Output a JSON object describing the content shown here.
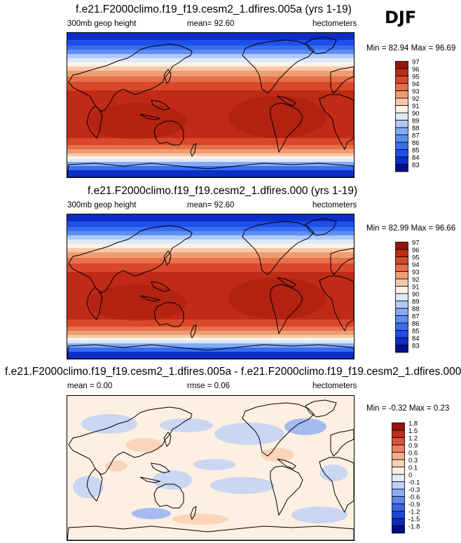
{
  "season": "DJF",
  "chart_data": [
    {
      "type": "heatmap",
      "title": "f.e21.F2000climo.f19_f19.cesm2_1.dfires.005a (yrs 1-19)",
      "variable": "300mb geop height",
      "mean_label": "mean=  92.60",
      "units": "hectometers",
      "minmax_label": "Min = 82.94 Max = 96.69",
      "min": 82.94,
      "max": 96.69,
      "mean": 92.6,
      "colorbar_levels": [
        "83",
        "84",
        "85",
        "86",
        "87",
        "88",
        "89",
        "90",
        "91",
        "92",
        "93",
        "94",
        "95",
        "96",
        "97"
      ],
      "colorbar_colors": [
        "#000f8a",
        "#0a2fc8",
        "#1f4fe8",
        "#3a6ef0",
        "#5d8ef2",
        "#85aaf4",
        "#b0c8f6",
        "#dde8fb",
        "#fdf1e6",
        "#f8c9a8",
        "#f09c72",
        "#e6704a",
        "#d9482b",
        "#c02a16",
        "#961408"
      ]
    },
    {
      "type": "heatmap",
      "title": "f.e21.F2000climo.f19_f19.cesm2_1.dfires.000 (yrs 1-19)",
      "variable": "300mb geop height",
      "mean_label": "mean=  92.60",
      "units": "hectometers",
      "minmax_label": "Min = 82.99 Max = 96.66",
      "min": 82.99,
      "max": 96.66,
      "mean": 92.6,
      "colorbar_levels": [
        "83",
        "84",
        "85",
        "86",
        "87",
        "88",
        "89",
        "90",
        "91",
        "92",
        "93",
        "94",
        "95",
        "96",
        "97"
      ],
      "colorbar_colors": [
        "#000f8a",
        "#0a2fc8",
        "#1f4fe8",
        "#3a6ef0",
        "#5d8ef2",
        "#85aaf4",
        "#b0c8f6",
        "#dde8fb",
        "#fdf1e6",
        "#f8c9a8",
        "#f09c72",
        "#e6704a",
        "#d9482b",
        "#c02a16",
        "#961408"
      ]
    },
    {
      "type": "heatmap",
      "title": "f.e21.F2000climo.f19_f19.cesm2_1.dfires.005a - f.e21.F2000climo.f19_f19.cesm2_1.dfires.000",
      "mean_label": "mean =  0.00",
      "rmse_label": "rmse =  0.06",
      "units": "hectometers",
      "minmax_label": "Min = -0.32 Max =  0.23",
      "min": -0.32,
      "max": 0.23,
      "mean": 0.0,
      "rmse": 0.06,
      "colorbar_levels": [
        "-1.8",
        "-1.5",
        "-1.2",
        "-0.9",
        "-0.6",
        "-0.3",
        "-0.1",
        "0",
        "0.1",
        "0.3",
        "0.6",
        "0.9",
        "1.2",
        "1.5",
        "1.8"
      ],
      "colorbar_colors": [
        "#000c80",
        "#0a2ab8",
        "#1c46d8",
        "#3a66e6",
        "#6088ec",
        "#8eaef2",
        "#bdd0f6",
        "#e3ecfb",
        "#fdf0e2",
        "#f9d2b6",
        "#f3ad88",
        "#ea8160",
        "#d9543a",
        "#bf2e1e",
        "#96140a"
      ]
    }
  ]
}
